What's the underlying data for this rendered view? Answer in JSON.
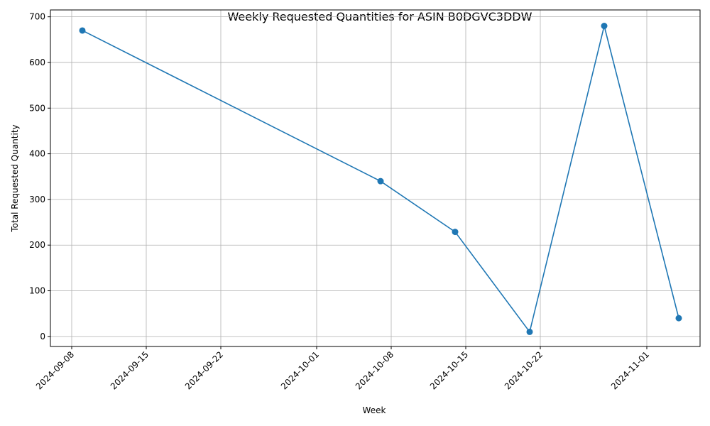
{
  "chart_data": {
    "type": "line",
    "title": "Weekly Requested Quantities for ASIN B0DGVC3DDW",
    "xlabel": "Week",
    "ylabel": "Total Requested Quantity",
    "x_ticks": [
      "2024-09-08",
      "2024-09-15",
      "2024-09-22",
      "2024-10-01",
      "2024-10-08",
      "2024-10-15",
      "2024-10-22",
      "2024-11-01"
    ],
    "y_ticks": [
      0,
      100,
      200,
      300,
      400,
      500,
      600,
      700
    ],
    "xlim": [
      "2024-09-06",
      "2024-11-06"
    ],
    "ylim": [
      -22,
      715
    ],
    "grid": true,
    "series": [
      {
        "color": "#1f77b4",
        "points": [
          {
            "x": "2024-09-09",
            "y": 670
          },
          {
            "x": "2024-10-07",
            "y": 340
          },
          {
            "x": "2024-10-14",
            "y": 229
          },
          {
            "x": "2024-10-21",
            "y": 10
          },
          {
            "x": "2024-10-28",
            "y": 680
          },
          {
            "x": "2024-11-04",
            "y": 40
          }
        ]
      }
    ]
  }
}
